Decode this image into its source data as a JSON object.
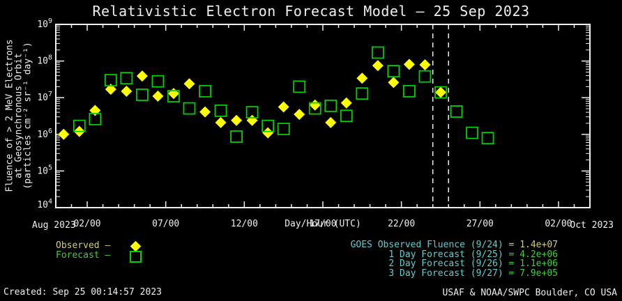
{
  "title": "Relativistic Electron Forecast Model — 25 Sep 2023",
  "axes": {
    "x": {
      "title": "Day/Hour (UTC)",
      "left_label": "Aug 2023",
      "right_label": "Oct 2023",
      "major_ticks": [
        {
          "day": 2,
          "label": "02/00"
        },
        {
          "day": 7,
          "label": "07/00"
        },
        {
          "day": 12,
          "label": "12/00"
        },
        {
          "day": 17,
          "label": "17/00"
        },
        {
          "day": 22,
          "label": "22/00"
        },
        {
          "day": 27,
          "label": "27/00"
        },
        {
          "day": 32,
          "label": "02/00"
        }
      ]
    },
    "y": {
      "title_lines": [
        "Fluence of > 2 MeV Electrons",
        "at Geosynchronous Orbit",
        "(particles cm⁻² sr⁻¹ day⁻¹)"
      ],
      "decades": [
        9,
        8,
        7,
        6,
        5,
        4
      ]
    }
  },
  "legend": {
    "observed_label": "Observed –",
    "forecast_label": "Forecast –"
  },
  "readout": {
    "lines": [
      {
        "label": "GOES Observed Fluence (9/24)",
        "value": "= 1.4e+07",
        "value_color": "#CFCF6E"
      },
      {
        "label": "1 Day Forecast (9/25)",
        "value": "= 4.2e+06",
        "value_color": "#3FCC3F"
      },
      {
        "label": "2 Day Forecast (9/26)",
        "value": "= 1.1e+06",
        "value_color": "#3FCC3F"
      },
      {
        "label": "3 Day Forecast (9/27)",
        "value": "= 7.9e+05",
        "value_color": "#3FCC3F"
      }
    ]
  },
  "footer": {
    "created": "Created: Sep 25 00:14:57 2023",
    "credit": "USAF & NOAA/SWPC Boulder, CO USA"
  },
  "colors": {
    "background": "#000000",
    "frame": "#EFEFEF",
    "observed_marker": "#FFFF00",
    "forecast_marker": "#00CF00",
    "cyan_text": "#63CCCC",
    "yellow_text": "#CFCF6E",
    "green_text": "#3FCC3F"
  },
  "chart_data": {
    "type": "scatter",
    "title": "Relativistic Electron Forecast Model — 25 Sep 2023",
    "xlabel": "Day/Hour (UTC)",
    "ylabel": "Fluence of > 2 MeV Electrons at Geosynchronous Orbit (particles cm-2 sr-1 day-1)",
    "x_unit": "days, 0 = Aug 31 2023 00:00 UTC (Sep day numbers)",
    "xlim": [
      0,
      34
    ],
    "ylim": [
      10000.0,
      1000000000.0
    ],
    "ylog": true,
    "grid": false,
    "legend_position": "bottom-left",
    "plot_at_day_center": true,
    "forecast_start_lines": [
      24,
      25
    ],
    "series": [
      {
        "name": "Observed",
        "marker": "diamond",
        "color": "#FFFF00",
        "points": [
          {
            "day": 0,
            "value": 1000000.0
          },
          {
            "day": 1,
            "value": 1200000.0
          },
          {
            "day": 2,
            "value": 4500000.0
          },
          {
            "day": 3,
            "value": 17000000.0
          },
          {
            "day": 4,
            "value": 15000000.0
          },
          {
            "day": 5,
            "value": 39000000.0
          },
          {
            "day": 6,
            "value": 11000000.0
          },
          {
            "day": 7,
            "value": 13000000.0
          },
          {
            "day": 8,
            "value": 24000000.0
          },
          {
            "day": 9,
            "value": 4100000.0
          },
          {
            "day": 10,
            "value": 2100000.0
          },
          {
            "day": 11,
            "value": 2400000.0
          },
          {
            "day": 12,
            "value": 2400000.0
          },
          {
            "day": 13,
            "value": 1100000.0
          },
          {
            "day": 14,
            "value": 5600000.0
          },
          {
            "day": 15,
            "value": 3500000.0
          },
          {
            "day": 16,
            "value": 6300000.0
          },
          {
            "day": 17,
            "value": 2100000.0
          },
          {
            "day": 18,
            "value": 7200000.0
          },
          {
            "day": 19,
            "value": 34000000.0
          },
          {
            "day": 20,
            "value": 75000000.0
          },
          {
            "day": 21,
            "value": 26000000.0
          },
          {
            "day": 22,
            "value": 81000000.0
          },
          {
            "day": 23,
            "value": 79000000.0
          },
          {
            "day": 24,
            "value": 14000000.0
          }
        ]
      },
      {
        "name": "Forecast",
        "marker": "square",
        "color": "#00CF00",
        "points": [
          {
            "day": 1,
            "value": 1700000.0
          },
          {
            "day": 2,
            "value": 2600000.0
          },
          {
            "day": 3,
            "value": 30000000.0
          },
          {
            "day": 4,
            "value": 34000000.0
          },
          {
            "day": 5,
            "value": 12000000.0
          },
          {
            "day": 6,
            "value": 28000000.0
          },
          {
            "day": 7,
            "value": 11000000.0
          },
          {
            "day": 8,
            "value": 5100000.0
          },
          {
            "day": 9,
            "value": 15000000.0
          },
          {
            "day": 10,
            "value": 4400000.0
          },
          {
            "day": 11,
            "value": 870000.0
          },
          {
            "day": 12,
            "value": 4000000.0
          },
          {
            "day": 13,
            "value": 1700000.0
          },
          {
            "day": 14,
            "value": 1400000.0
          },
          {
            "day": 15,
            "value": 20000000.0
          },
          {
            "day": 16,
            "value": 5100000.0
          },
          {
            "day": 17,
            "value": 6000000.0
          },
          {
            "day": 18,
            "value": 3200000.0
          },
          {
            "day": 19,
            "value": 13000000.0
          },
          {
            "day": 20,
            "value": 170000000.0
          },
          {
            "day": 21,
            "value": 53000000.0
          },
          {
            "day": 22,
            "value": 15000000.0
          },
          {
            "day": 23,
            "value": 38000000.0
          },
          {
            "day": 24,
            "value": 14000000.0
          },
          {
            "day": 25,
            "value": 4200000.0
          },
          {
            "day": 26,
            "value": 1100000.0
          },
          {
            "day": 27,
            "value": 790000.0
          }
        ]
      }
    ]
  }
}
